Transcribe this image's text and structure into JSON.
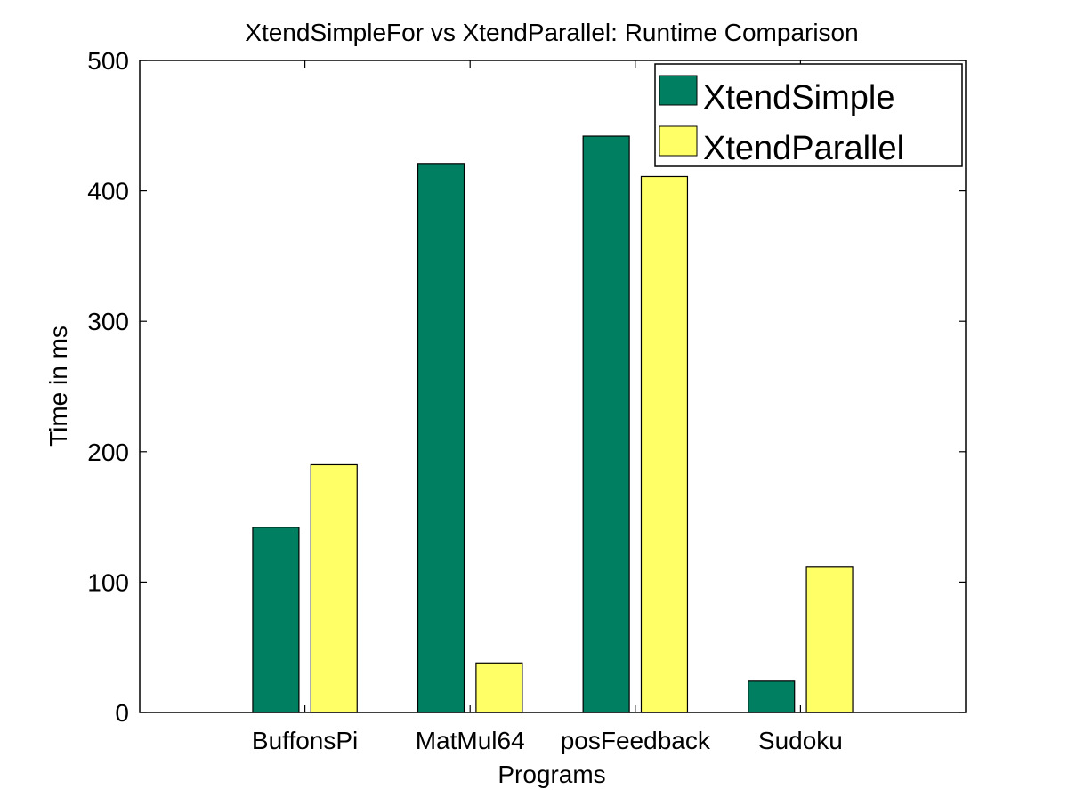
{
  "chart_data": {
    "type": "bar",
    "title": "XtendSimpleFor vs XtendParallel: Runtime Comparison",
    "xlabel": "Programs",
    "ylabel": "Time in ms",
    "categories": [
      "BuffonsPi",
      "MatMul64",
      "posFeedback",
      "Sudoku"
    ],
    "series": [
      {
        "name": "XtendSimple",
        "color": "#008060",
        "values": [
          142,
          421,
          442,
          24
        ]
      },
      {
        "name": "XtendParallel",
        "color": "#ffff66",
        "values": [
          190,
          38,
          411,
          112
        ]
      }
    ],
    "ylim": [
      0,
      500
    ],
    "yticks": [
      "0",
      "100",
      "200",
      "300",
      "400",
      "500"
    ],
    "grid": false,
    "legend_position": "top-right"
  }
}
